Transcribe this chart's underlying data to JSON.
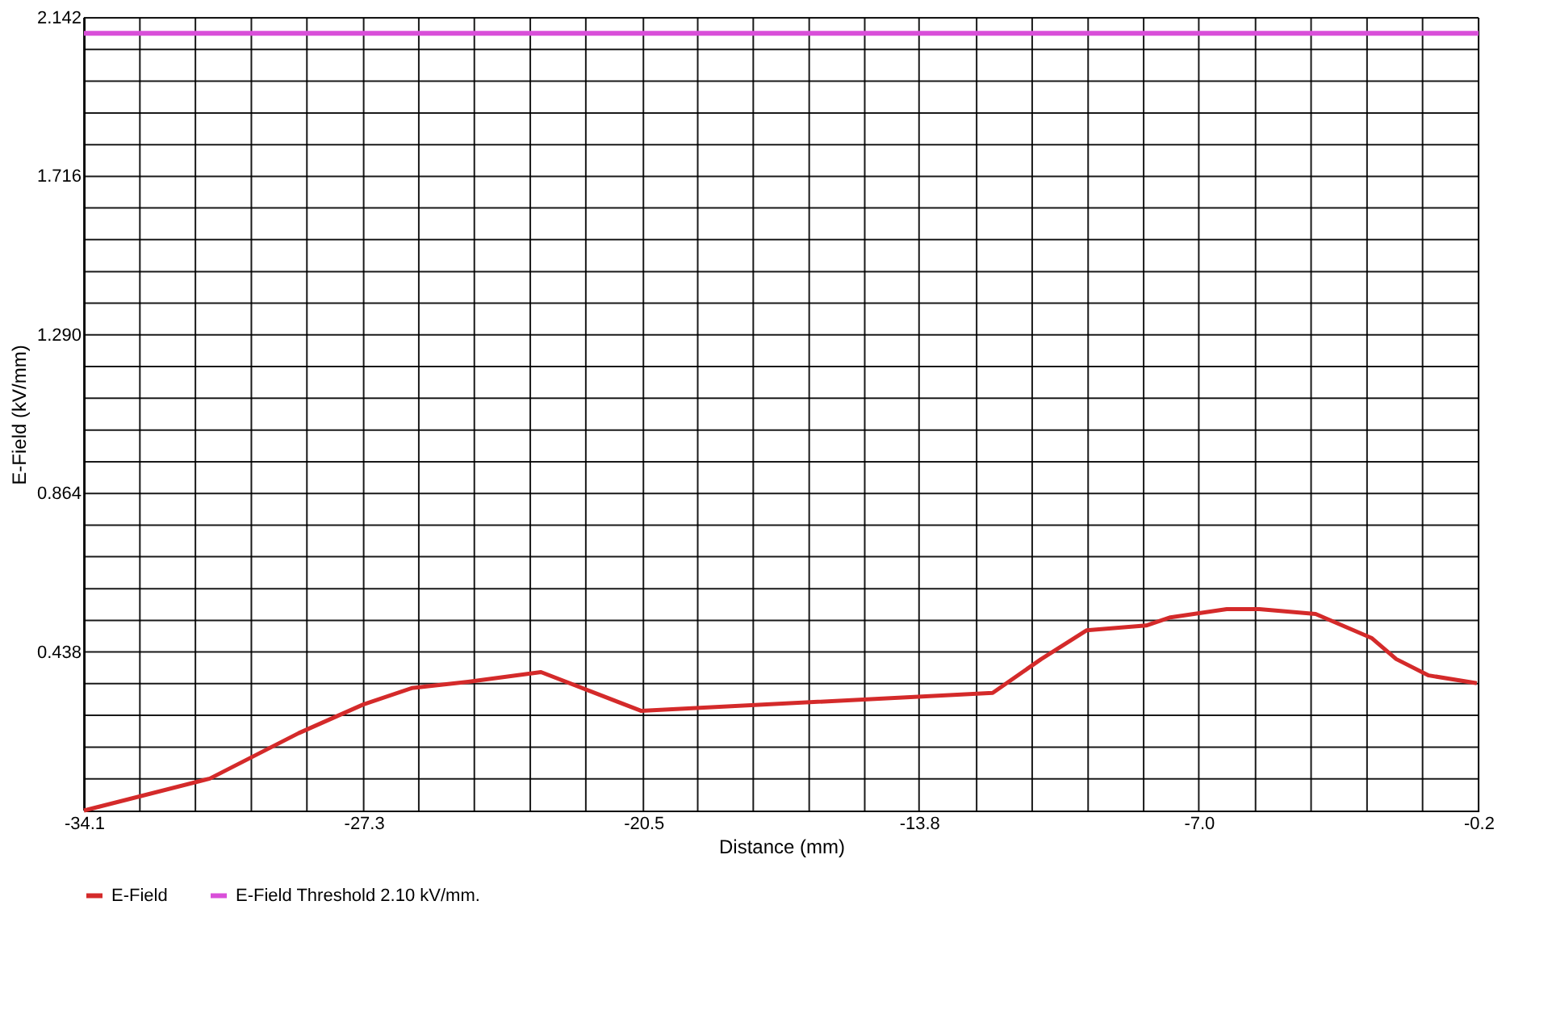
{
  "chart_data": {
    "type": "line",
    "xlabel": "Distance (mm)",
    "ylabel": "E-Field (kV/mm)",
    "x": [
      -34.1,
      -31.04,
      -28.88,
      -27.31,
      -26.13,
      -24.76,
      -22.99,
      -20.56,
      -12.01,
      -10.83,
      -9.73,
      -8.28,
      -7.69,
      -6.32,
      -5.53,
      -4.16,
      -2.79,
      -2.2,
      -1.41,
      -0.24
    ],
    "series": [
      {
        "name": "E-Field",
        "color": "#d42a2a",
        "values": [
          0.012,
          0.098,
          0.22,
          0.297,
          0.341,
          0.358,
          0.384,
          0.28,
          0.328,
          0.419,
          0.496,
          0.509,
          0.531,
          0.553,
          0.553,
          0.54,
          0.475,
          0.419,
          0.375,
          0.354
        ]
      }
    ],
    "ref_lines": [
      {
        "axis": "y",
        "value": 2.1,
        "label": "E-Field Threshold 2.10 kV/mm.",
        "color": "#d94fd9"
      }
    ],
    "xlim": [
      -34.1,
      -0.2
    ],
    "ylim": [
      0.012,
      2.142
    ],
    "xticks": [
      -34.1,
      {
        "value": -32.74,
        "label": null
      },
      {
        "value": -31.39,
        "label": null
      },
      {
        "value": -30.03,
        "label": null
      },
      {
        "value": -28.68,
        "label": null
      },
      -27.3,
      {
        "value": -25.96,
        "label": null
      },
      {
        "value": -24.61,
        "label": null
      },
      {
        "value": -23.25,
        "label": null
      },
      {
        "value": -21.9,
        "label": null
      },
      -20.5,
      {
        "value": -19.18,
        "label": null
      },
      {
        "value": -17.83,
        "label": null
      },
      {
        "value": -16.47,
        "label": null
      },
      {
        "value": -15.12,
        "label": null
      },
      -13.8,
      {
        "value": -12.4,
        "label": null
      },
      {
        "value": -11.05,
        "label": null
      },
      {
        "value": -9.69,
        "label": null
      },
      {
        "value": -8.34,
        "label": null
      },
      {
        "value": -7,
        "label": "-7.0"
      },
      {
        "value": -5.62,
        "label": null
      },
      {
        "value": -4.27,
        "label": null
      },
      {
        "value": -2.91,
        "label": null
      },
      {
        "value": -1.56,
        "label": null
      },
      -0.2
    ],
    "yticks": [
      {
        "value": 0.097,
        "label": null
      },
      {
        "value": 0.182,
        "label": null
      },
      {
        "value": 0.268,
        "label": null
      },
      {
        "value": 0.353,
        "label": null
      },
      0.438,
      {
        "value": 0.523,
        "label": null
      },
      {
        "value": 0.608,
        "label": null
      },
      {
        "value": 0.694,
        "label": null
      },
      {
        "value": 0.779,
        "label": null
      },
      0.864,
      {
        "value": 0.949,
        "label": null
      },
      {
        "value": 1.034,
        "label": null
      },
      {
        "value": 1.12,
        "label": null
      },
      {
        "value": 1.205,
        "label": null
      },
      {
        "value": 1.29,
        "label": "1.290"
      },
      {
        "value": 1.375,
        "label": null
      },
      {
        "value": 1.46,
        "label": null
      },
      {
        "value": 1.546,
        "label": null
      },
      {
        "value": 1.631,
        "label": null
      },
      1.716,
      {
        "value": 1.801,
        "label": null
      },
      {
        "value": 1.886,
        "label": null
      },
      {
        "value": 1.972,
        "label": null
      },
      {
        "value": 2.057,
        "label": null
      },
      2.142
    ],
    "grid": true,
    "legend": "bottom",
    "line_style": "solid",
    "marker": "none"
  }
}
